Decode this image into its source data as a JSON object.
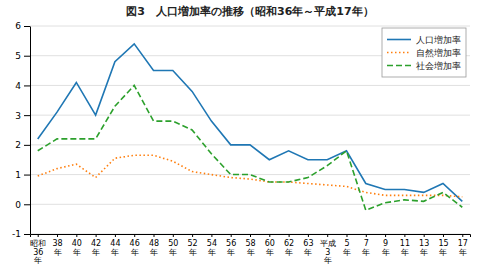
{
  "chart_data": {
    "type": "line",
    "title": "図3　人口増加率の推移（昭和36年～平成17年）",
    "categories": [
      "昭和\n36\n年",
      "38\n年",
      "40\n年",
      "42\n年",
      "44\n年",
      "46\n年",
      "48\n年",
      "50\n年",
      "52\n年",
      "54\n年",
      "56\n年",
      "58\n年",
      "60\n年",
      "62\n年",
      "63\n年",
      "平成\n3\n年",
      "5\n年",
      "7\n年",
      "9\n年",
      "11\n年",
      "13\n年",
      "15\n年",
      "17\n年"
    ],
    "series": [
      {
        "name": "人口増加率",
        "line_style": "solid",
        "values": [
          2.2,
          3.1,
          4.1,
          3.0,
          4.8,
          5.4,
          4.5,
          4.5,
          3.8,
          2.8,
          2.0,
          2.0,
          1.5,
          1.8,
          1.5,
          1.5,
          1.8,
          0.7,
          0.5,
          0.5,
          0.4,
          0.7,
          0.1
        ]
      },
      {
        "name": "自然増加率",
        "line_style": "dotted",
        "values": [
          0.95,
          1.2,
          1.35,
          0.9,
          1.55,
          1.65,
          1.65,
          1.45,
          1.1,
          1.0,
          0.9,
          0.85,
          0.75,
          0.75,
          0.7,
          0.65,
          0.6,
          0.4,
          0.3,
          0.3,
          0.3,
          0.3,
          0.25
        ]
      },
      {
        "name": "社会増加率",
        "line_style": "dashed",
        "values": [
          1.8,
          2.2,
          2.2,
          2.2,
          3.3,
          4.0,
          2.8,
          2.8,
          2.5,
          1.7,
          1.0,
          1.0,
          0.75,
          0.75,
          0.9,
          1.3,
          1.8,
          -0.2,
          0.05,
          0.15,
          0.1,
          0.4,
          -0.1
        ]
      }
    ],
    "ylim": [
      -1,
      6
    ],
    "yticks": [
      -1,
      0,
      1,
      2,
      3,
      4,
      5,
      6
    ],
    "grid": true,
    "legend": "upper right"
  }
}
